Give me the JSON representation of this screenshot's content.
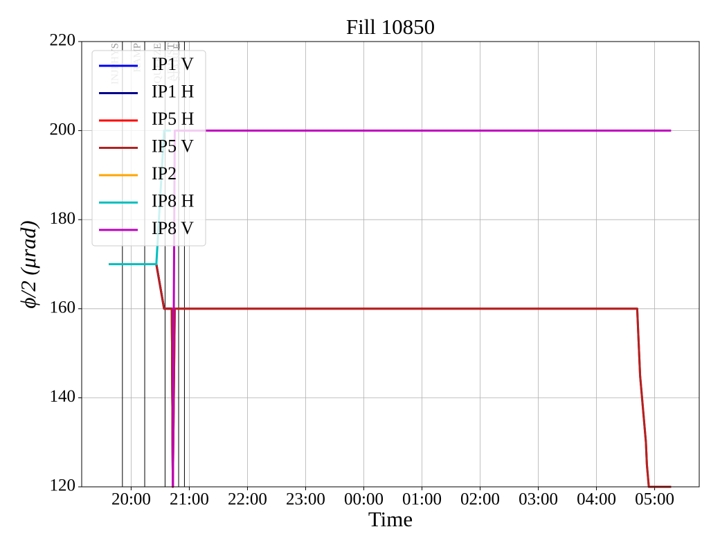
{
  "chart_data": {
    "type": "line",
    "title": "Fill 10850",
    "xlabel": "Time",
    "ylabel": "ϕ/2 (μrad)",
    "xlim": [
      "19:09",
      "05:46"
    ],
    "ylim": [
      120,
      220
    ],
    "xticks": [
      "20:00",
      "21:00",
      "22:00",
      "23:00",
      "00:00",
      "01:00",
      "02:00",
      "03:00",
      "04:00",
      "05:00"
    ],
    "yticks": [
      120,
      140,
      160,
      180,
      200,
      220
    ],
    "grid": true,
    "legend": "upper left",
    "annotations": [
      {
        "label": "INJPHYS",
        "x": "19:51"
      },
      {
        "label": "RAMP",
        "x": "20:14"
      },
      {
        "label": "SQUEEZE",
        "x": "20:35"
      },
      {
        "label": "ADJUST",
        "x": "20:49"
      },
      {
        "label": "STABLE",
        "x": "20:55"
      }
    ],
    "series": [
      {
        "name": "IP1 V",
        "color": "#0000ff",
        "x": [
          "19:37",
          "20:26",
          "20:34",
          "20:42",
          "20:43"
        ],
        "values": [
          170,
          170,
          160,
          160,
          120
        ]
      },
      {
        "name": "IP1 H",
        "color": "#00008b",
        "x": [
          "19:37",
          "20:26",
          "20:34",
          "20:42",
          "20:43"
        ],
        "values": [
          170,
          170,
          160,
          160,
          120
        ]
      },
      {
        "name": "IP5 H",
        "color": "#ff0000",
        "x": [
          "19:37",
          "20:26",
          "20:34",
          "20:42",
          "20:43",
          "20:45",
          "04:42",
          "04:43",
          "04:44",
          "04:45",
          "04:47",
          "04:49",
          "04:51",
          "04:52",
          "04:54",
          "05:17"
        ],
        "values": [
          170,
          170,
          160,
          160,
          120,
          160,
          160,
          155,
          150,
          145,
          140,
          135,
          130,
          125,
          120,
          120
        ]
      },
      {
        "name": "IP5 V",
        "color": "#b22222",
        "x": [
          "19:37",
          "20:26",
          "20:34",
          "20:42",
          "20:43",
          "20:45",
          "04:42",
          "04:43",
          "04:44",
          "04:45",
          "04:47",
          "04:49",
          "04:51",
          "04:52",
          "04:54",
          "05:17"
        ],
        "values": [
          170,
          170,
          160,
          160,
          120,
          160,
          160,
          155,
          150,
          145,
          140,
          135,
          130,
          125,
          120,
          120
        ]
      },
      {
        "name": "IP2",
        "color": "#ffa500",
        "x": [
          "19:37",
          "20:26"
        ],
        "values": [
          170,
          170
        ]
      },
      {
        "name": "IP8 H",
        "color": "#00bfbf",
        "x": [
          "19:37",
          "20:26",
          "20:34",
          "20:41"
        ],
        "values": [
          170,
          170,
          200,
          200
        ]
      },
      {
        "name": "IP8 V",
        "color": "#bf00bf",
        "x": [
          "20:43",
          "20:45",
          "05:17"
        ],
        "values": [
          120,
          200,
          200
        ]
      }
    ]
  }
}
